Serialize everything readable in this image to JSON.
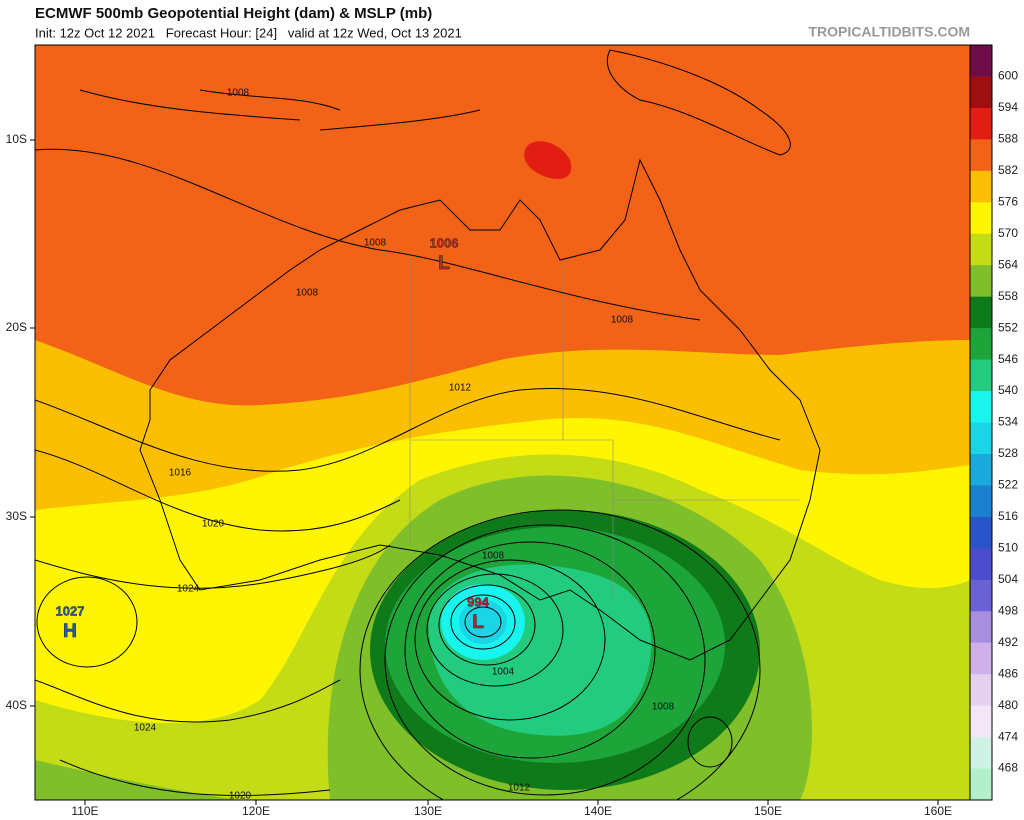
{
  "header": {
    "title": "ECMWF 500mb Geopotential Height (dam) & MSLP (mb)",
    "subtitle": "Init: 12z Oct 12 2021   Forecast Hour: [24]   valid at 12z Wed, Oct 13 2021",
    "credit": "TROPICALTIDBITS.COM"
  },
  "map": {
    "lon_labels": [
      "110E",
      "120E",
      "130E",
      "140E",
      "150E",
      "160E"
    ],
    "lat_labels": [
      "10S",
      "20S",
      "30S",
      "40S"
    ],
    "isobar_labels": [
      "1008",
      "1008",
      "1008",
      "1008",
      "1012",
      "1016",
      "1020",
      "1024",
      "1024",
      "1020",
      "1008",
      "1004",
      "1008",
      "1012"
    ],
    "centers": [
      {
        "value": "1006",
        "symbol": "L"
      },
      {
        "value": "994",
        "symbol": "L"
      },
      {
        "value": "1027",
        "symbol": "H"
      }
    ]
  },
  "colorbar": {
    "labels": [
      600,
      594,
      588,
      582,
      576,
      570,
      564,
      558,
      552,
      546,
      540,
      534,
      528,
      522,
      516,
      510,
      504,
      498,
      492,
      486,
      480,
      474,
      468
    ],
    "colors": [
      "#6e0d4a",
      "#9e0f10",
      "#e11d14",
      "#f26318",
      "#fcbf00",
      "#fff500",
      "#c3dc16",
      "#7fbf2a",
      "#0f7a1a",
      "#1da53a",
      "#23cb7f",
      "#17f5ee",
      "#1ad5e6",
      "#1aa9dc",
      "#1b7fd2",
      "#2a55c8",
      "#4a4ccc",
      "#6a62d4",
      "#a88ede",
      "#cfb0e8",
      "#e6d0f0",
      "#f3e6f7",
      "#d0f2e6",
      "#b2f0cc"
    ]
  }
}
